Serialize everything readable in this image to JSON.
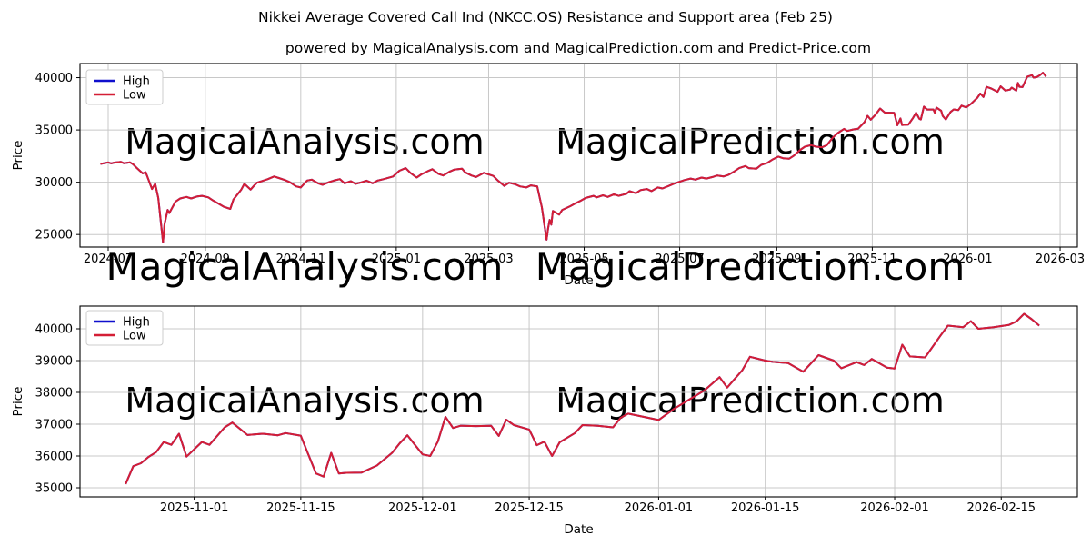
{
  "figure": {
    "title": "Nikkei Average Covered Call Ind (NKCC.OS) Resistance and Support area (Feb 25)",
    "subtitle": "powered by MagicalAnalysis.com and MagicalPrediction.com and Predict-Price.com",
    "watermark_left": "MagicalAnalysis.com",
    "watermark_right": "MagicalPrediction.com",
    "colors": {
      "high": "#0f0fcd",
      "low": "#d41e35",
      "grid": "#c8c8c8",
      "spine": "#000000",
      "watermark": "#e8e8e8",
      "legend_border": "#cccccc",
      "text": "#000000"
    }
  },
  "chart_data": [
    {
      "type": "line",
      "name": "full-history",
      "xlabel": "Date",
      "ylabel": "Price",
      "grid": true,
      "legend_position": "upper left",
      "ylim": [
        23800,
        41350
      ],
      "xlim": [
        "2024-06-13",
        "2026-03-12"
      ],
      "yticks": [
        25000,
        30000,
        35000,
        40000
      ],
      "xticks": [
        {
          "date": "2024-07-01",
          "label": "2024-07"
        },
        {
          "date": "2024-09-01",
          "label": "2024-09"
        },
        {
          "date": "2024-11-01",
          "label": "2024-11"
        },
        {
          "date": "2025-01-01",
          "label": "2025-01"
        },
        {
          "date": "2025-03-01",
          "label": "2025-03"
        },
        {
          "date": "2025-05-01",
          "label": "2025-05"
        },
        {
          "date": "2025-07-01",
          "label": "2025-07"
        },
        {
          "date": "2025-09-01",
          "label": "2025-09"
        },
        {
          "date": "2025-11-01",
          "label": "2025-11"
        },
        {
          "date": "2026-01-01",
          "label": "2026-01"
        },
        {
          "date": "2026-03-01",
          "label": "2026-03"
        }
      ],
      "x": [
        "2024-06-26",
        "2024-07-01",
        "2024-07-03",
        "2024-07-05",
        "2024-07-09",
        "2024-07-11",
        "2024-07-15",
        "2024-07-17",
        "2024-07-19",
        "2024-07-23",
        "2024-07-25",
        "2024-07-29",
        "2024-07-31",
        "2024-08-02",
        "2024-08-05",
        "2024-08-06",
        "2024-08-08",
        "2024-08-09",
        "2024-08-13",
        "2024-08-16",
        "2024-08-20",
        "2024-08-23",
        "2024-08-27",
        "2024-08-30",
        "2024-09-03",
        "2024-09-06",
        "2024-09-10",
        "2024-09-13",
        "2024-09-17",
        "2024-09-19",
        "2024-09-24",
        "2024-09-26",
        "2024-09-30",
        "2024-10-02",
        "2024-10-04",
        "2024-10-08",
        "2024-10-11",
        "2024-10-15",
        "2024-10-18",
        "2024-10-22",
        "2024-10-25",
        "2024-10-29",
        "2024-11-01",
        "2024-11-05",
        "2024-11-08",
        "2024-11-12",
        "2024-11-15",
        "2024-11-19",
        "2024-11-22",
        "2024-11-26",
        "2024-11-29",
        "2024-12-03",
        "2024-12-06",
        "2024-12-10",
        "2024-12-13",
        "2024-12-17",
        "2024-12-20",
        "2024-12-24",
        "2024-12-30",
        "2025-01-03",
        "2025-01-07",
        "2025-01-10",
        "2025-01-14",
        "2025-01-17",
        "2025-01-21",
        "2025-01-24",
        "2025-01-28",
        "2025-01-31",
        "2025-02-04",
        "2025-02-07",
        "2025-02-12",
        "2025-02-14",
        "2025-02-18",
        "2025-02-21",
        "2025-02-26",
        "2025-02-28",
        "2025-03-04",
        "2025-03-07",
        "2025-03-11",
        "2025-03-14",
        "2025-03-18",
        "2025-03-21",
        "2025-03-25",
        "2025-03-28",
        "2025-04-01",
        "2025-04-04",
        "2025-04-07",
        "2025-04-08",
        "2025-04-09",
        "2025-04-10",
        "2025-04-11",
        "2025-04-15",
        "2025-04-17",
        "2025-04-22",
        "2025-04-25",
        "2025-04-29",
        "2025-05-02",
        "2025-05-07",
        "2025-05-09",
        "2025-05-13",
        "2025-05-16",
        "2025-05-20",
        "2025-05-23",
        "2025-05-28",
        "2025-05-30",
        "2025-06-03",
        "2025-06-06",
        "2025-06-10",
        "2025-06-13",
        "2025-06-17",
        "2025-06-20",
        "2025-06-24",
        "2025-06-27",
        "2025-07-01",
        "2025-07-04",
        "2025-07-08",
        "2025-07-11",
        "2025-07-15",
        "2025-07-18",
        "2025-07-22",
        "2025-07-25",
        "2025-07-29",
        "2025-08-01",
        "2025-08-05",
        "2025-08-08",
        "2025-08-12",
        "2025-08-14",
        "2025-08-19",
        "2025-08-22",
        "2025-08-26",
        "2025-08-29",
        "2025-09-02",
        "2025-09-05",
        "2025-09-09",
        "2025-09-12",
        "2025-09-16",
        "2025-09-19",
        "2025-09-23",
        "2025-09-26",
        "2025-09-30",
        "2025-10-03",
        "2025-10-07",
        "2025-10-10",
        "2025-10-14",
        "2025-10-16",
        "2025-10-20",
        "2025-10-23",
        "2025-10-27",
        "2025-10-29",
        "2025-10-31",
        "2025-11-03",
        "2025-11-06",
        "2025-11-09",
        "2025-11-12",
        "2025-11-15",
        "2025-11-17",
        "2025-11-19",
        "2025-11-20",
        "2025-11-24",
        "2025-11-27",
        "2025-11-29",
        "2025-12-01",
        "2025-12-02",
        "2025-12-04",
        "2025-12-06",
        "2025-12-10",
        "2025-12-11",
        "2025-12-12",
        "2025-12-15",
        "2025-12-16",
        "2025-12-18",
        "2025-12-21",
        "2025-12-23",
        "2025-12-26",
        "2025-12-28",
        "2025-12-31",
        "2026-01-03",
        "2026-01-05",
        "2026-01-07",
        "2026-01-09",
        "2026-01-11",
        "2026-01-13",
        "2026-01-16",
        "2026-01-20",
        "2026-01-22",
        "2026-01-25",
        "2026-01-28",
        "2026-01-29",
        "2026-02-01",
        "2026-02-02",
        "2026-02-03",
        "2026-02-05",
        "2026-02-07",
        "2026-02-08",
        "2026-02-11",
        "2026-02-12",
        "2026-02-14",
        "2026-02-16",
        "2026-02-18",
        "2026-02-19",
        "2026-02-20"
      ],
      "series": [
        {
          "name": "High",
          "color": "#0f0fcd",
          "coincides_with": "Low"
        },
        {
          "name": "Low",
          "color": "#d41e35",
          "values": [
            31750,
            31900,
            31800,
            31880,
            31950,
            31820,
            31900,
            31700,
            31400,
            30850,
            30950,
            29350,
            29850,
            28500,
            24250,
            26000,
            27350,
            27050,
            28150,
            28450,
            28600,
            28450,
            28650,
            28700,
            28550,
            28250,
            27900,
            27650,
            27450,
            28350,
            29300,
            29850,
            29300,
            29650,
            29950,
            30150,
            30300,
            30550,
            30400,
            30200,
            30000,
            29600,
            29500,
            30150,
            30250,
            29900,
            29750,
            30000,
            30150,
            30300,
            29900,
            30100,
            29850,
            30000,
            30150,
            29900,
            30150,
            30300,
            30550,
            31100,
            31350,
            30900,
            30450,
            30750,
            31050,
            31250,
            30800,
            30650,
            31000,
            31200,
            31300,
            30950,
            30650,
            30500,
            30900,
            30800,
            30600,
            30150,
            29650,
            29950,
            29800,
            29600,
            29500,
            29700,
            29600,
            27600,
            24500,
            25600,
            26400,
            25950,
            27250,
            26900,
            27350,
            27700,
            27950,
            28250,
            28500,
            28700,
            28550,
            28750,
            28600,
            28850,
            28700,
            28900,
            29150,
            28950,
            29250,
            29350,
            29150,
            29500,
            29400,
            29650,
            29850,
            30050,
            30200,
            30350,
            30250,
            30450,
            30350,
            30500,
            30650,
            30550,
            30700,
            31050,
            31350,
            31550,
            31350,
            31300,
            31650,
            31850,
            32150,
            32450,
            32300,
            32250,
            32550,
            33100,
            33400,
            33550,
            33400,
            33350,
            33550,
            34300,
            34700,
            35100,
            34900,
            35050,
            35120,
            35750,
            36350,
            35980,
            36440,
            37050,
            36660,
            36650,
            36640,
            35450,
            36100,
            35480,
            35500,
            36150,
            36650,
            36080,
            36000,
            37230,
            36950,
            36950,
            36630,
            37140,
            36830,
            36340,
            36000,
            36720,
            36960,
            36900,
            37330,
            37150,
            37480,
            37770,
            38060,
            38480,
            38150,
            39120,
            38960,
            38650,
            39170,
            38760,
            38860,
            39050,
            38760,
            39500,
            39130,
            39100,
            39780,
            40100,
            40240,
            40000,
            40050,
            40230,
            40470,
            40300,
            40100
          ]
        }
      ]
    },
    {
      "type": "line",
      "name": "recent-zoom",
      "xlabel": "Date",
      "ylabel": "Price",
      "grid": true,
      "legend_position": "upper left",
      "ylim": [
        34714,
        40714
      ],
      "xlim": [
        "2025-10-17",
        "2026-02-25"
      ],
      "yticks": [
        35000,
        36000,
        37000,
        38000,
        39000,
        40000
      ],
      "xticks": [
        {
          "date": "2025-11-01",
          "label": "2025-11-01"
        },
        {
          "date": "2025-11-15",
          "label": "2025-11-15"
        },
        {
          "date": "2025-12-01",
          "label": "2025-12-01"
        },
        {
          "date": "2025-12-15",
          "label": "2025-12-15"
        },
        {
          "date": "2026-01-01",
          "label": "2026-01-01"
        },
        {
          "date": "2026-01-15",
          "label": "2026-01-15"
        },
        {
          "date": "2026-02-01",
          "label": "2026-02-01"
        },
        {
          "date": "2026-02-15",
          "label": "2026-02-15"
        }
      ],
      "x": [
        "2025-10-23",
        "2025-10-24",
        "2025-10-25",
        "2025-10-26",
        "2025-10-27",
        "2025-10-28",
        "2025-10-29",
        "2025-10-30",
        "2025-10-31",
        "2025-11-02",
        "2025-11-03",
        "2025-11-05",
        "2025-11-06",
        "2025-11-08",
        "2025-11-10",
        "2025-11-12",
        "2025-11-13",
        "2025-11-15",
        "2025-11-17",
        "2025-11-18",
        "2025-11-19",
        "2025-11-20",
        "2025-11-21",
        "2025-11-23",
        "2025-11-25",
        "2025-11-27",
        "2025-11-28",
        "2025-11-29",
        "2025-12-01",
        "2025-12-02",
        "2025-12-03",
        "2025-12-04",
        "2025-12-05",
        "2025-12-06",
        "2025-12-08",
        "2025-12-10",
        "2025-12-11",
        "2025-12-12",
        "2025-12-13",
        "2025-12-15",
        "2025-12-16",
        "2025-12-17",
        "2025-12-18",
        "2025-12-19",
        "2025-12-21",
        "2025-12-22",
        "2025-12-24",
        "2025-12-26",
        "2025-12-27",
        "2025-12-28",
        "2025-12-30",
        "2026-01-01",
        "2026-01-03",
        "2026-01-05",
        "2026-01-07",
        "2026-01-09",
        "2026-01-10",
        "2026-01-12",
        "2026-01-13",
        "2026-01-15",
        "2026-01-16",
        "2026-01-18",
        "2026-01-20",
        "2026-01-22",
        "2026-01-24",
        "2026-01-25",
        "2026-01-27",
        "2026-01-28",
        "2026-01-29",
        "2026-01-31",
        "2026-02-01",
        "2026-02-02",
        "2026-02-03",
        "2026-02-05",
        "2026-02-07",
        "2026-02-08",
        "2026-02-10",
        "2026-02-11",
        "2026-02-12",
        "2026-02-14",
        "2026-02-16",
        "2026-02-17",
        "2026-02-18",
        "2026-02-19",
        "2026-02-20"
      ],
      "series": [
        {
          "name": "High",
          "color": "#0f0fcd",
          "coincides_with": "Low"
        },
        {
          "name": "Low",
          "color": "#d41e35",
          "values": [
            35120,
            35680,
            35770,
            35970,
            36120,
            36440,
            36350,
            36700,
            35980,
            36440,
            36350,
            36900,
            37050,
            36660,
            36700,
            36650,
            36720,
            36640,
            35450,
            35350,
            36100,
            35450,
            35470,
            35480,
            35700,
            36100,
            36400,
            36650,
            36050,
            36000,
            36450,
            37230,
            36880,
            36950,
            36940,
            36950,
            36630,
            37140,
            36970,
            36830,
            36340,
            36450,
            36000,
            36430,
            36720,
            36970,
            36950,
            36900,
            37200,
            37330,
            37230,
            37130,
            37480,
            37770,
            38060,
            38480,
            38150,
            38700,
            39120,
            39000,
            38960,
            38920,
            38650,
            39170,
            39000,
            38760,
            38950,
            38860,
            39050,
            38780,
            38750,
            39500,
            39130,
            39100,
            39780,
            40100,
            40050,
            40240,
            40000,
            40050,
            40120,
            40230,
            40470,
            40300,
            40100
          ]
        }
      ]
    }
  ]
}
